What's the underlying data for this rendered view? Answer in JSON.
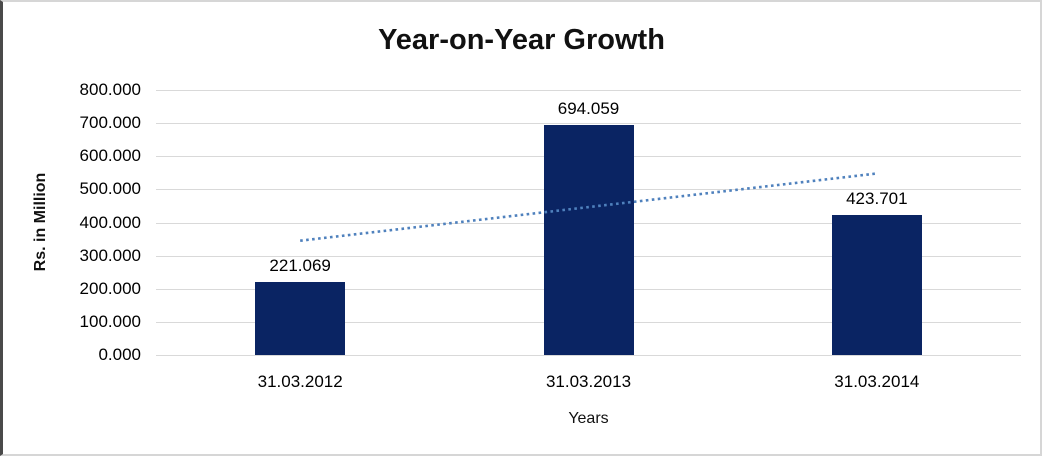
{
  "title": "Year-on-Year Growth",
  "colors": {
    "bar": "#0a2463",
    "trendline": "#4f81bd",
    "gridline": "#d9d9d9",
    "text": "#000000",
    "frame_border": "#d6d6d6",
    "frame_border_left": "#4a4a4a"
  },
  "chart_data": {
    "type": "bar",
    "title": "Year-on-Year Growth",
    "xlabel": "Years",
    "ylabel": "Rs. in Million",
    "categories": [
      "31.03.2012",
      "31.03.2013",
      "31.03.2014"
    ],
    "values": [
      221.069,
      694.059,
      423.701
    ],
    "value_labels": [
      "221.069",
      "694.059",
      "423.701"
    ],
    "ylim": [
      0,
      800
    ],
    "y_tick_step": 100,
    "y_tick_labels": [
      "0.000",
      "100.000",
      "200.000",
      "300.000",
      "400.000",
      "500.000",
      "600.000",
      "700.000",
      "800.000"
    ],
    "grid": "horizontal",
    "legend": "none",
    "trendline": {
      "style": "dotted",
      "start_value": 345,
      "end_value": 548
    }
  }
}
